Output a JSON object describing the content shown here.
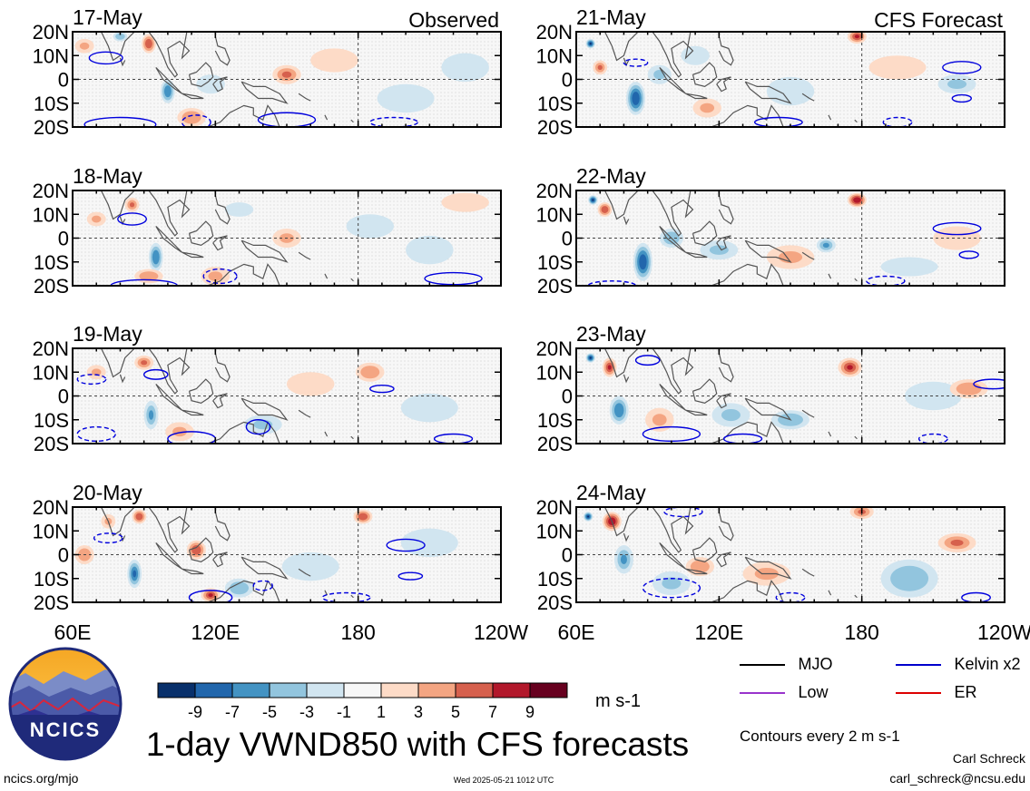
{
  "logo": {
    "text": "NCICS"
  },
  "title": "1-day VWND850 with CFS forecasts",
  "footer": {
    "left": "ncics.org/mjo",
    "center": "Wed 2025-05-21 1012 UTC",
    "author": "Carl Schreck",
    "email": "carl_schreck@ncsu.edu"
  },
  "colorbar": {
    "unit": "m s-1",
    "colors": [
      "#08306b",
      "#2166ac",
      "#4393c3",
      "#92c5de",
      "#d1e5f0",
      "#f7f7f7",
      "#fddbc7",
      "#f4a582",
      "#d6604d",
      "#b2182b",
      "#67001f"
    ],
    "tick_labels": [
      "-9",
      "-7",
      "-5",
      "-3",
      "-1",
      "1",
      "3",
      "5",
      "7",
      "9"
    ]
  },
  "legend": {
    "items": [
      {
        "label": "MJO",
        "color": "#000000"
      },
      {
        "label": "Kelvin x2",
        "color": "#0000cc"
      },
      {
        "label": "Low",
        "color": "#9933cc"
      },
      {
        "label": "ER",
        "color": "#dd0000"
      }
    ],
    "note": "Contours every 2 m s-1"
  },
  "chart_data": {
    "type": "heatmap",
    "variable": "VWND850",
    "units": "m s-1",
    "lon_ticks": [
      "60E",
      "120E",
      "180",
      "120W"
    ],
    "lat_ticks": [
      "20N",
      "10N",
      "0",
      "10S",
      "20S"
    ],
    "lon_range": [
      60,
      240
    ],
    "lat_range": [
      -20,
      20
    ],
    "levels": [
      -9,
      -7,
      -5,
      -3,
      -1,
      1,
      3,
      5,
      7,
      9
    ],
    "columns": [
      {
        "label": "Observed",
        "panels": [
          "17-May",
          "18-May",
          "19-May",
          "20-May"
        ]
      },
      {
        "label": "CFS Forecast",
        "panels": [
          "21-May",
          "22-May",
          "23-May",
          "24-May"
        ]
      }
    ],
    "anomaly_blobs": {
      "17-May": [
        [
          65,
          14,
          4,
          3,
          3
        ],
        [
          80,
          18,
          3,
          2,
          -4
        ],
        [
          92,
          15,
          3,
          4,
          6
        ],
        [
          100,
          -5,
          3,
          5,
          -6
        ],
        [
          118,
          -2,
          6,
          4,
          -2
        ],
        [
          150,
          2,
          6,
          4,
          5
        ],
        [
          170,
          8,
          10,
          5,
          2
        ],
        [
          200,
          -8,
          12,
          6,
          -1.5
        ],
        [
          225,
          5,
          10,
          6,
          -2
        ],
        [
          110,
          -16,
          6,
          4,
          4
        ]
      ],
      "18-May": [
        [
          70,
          8,
          4,
          3,
          3
        ],
        [
          85,
          14,
          3,
          3,
          5
        ],
        [
          95,
          -8,
          3,
          6,
          -6
        ],
        [
          92,
          -16,
          6,
          3,
          4
        ],
        [
          130,
          12,
          6,
          3,
          -2
        ],
        [
          150,
          0,
          6,
          4,
          3
        ],
        [
          185,
          5,
          10,
          5,
          -2
        ],
        [
          210,
          -5,
          10,
          6,
          -1.5
        ],
        [
          120,
          -16,
          6,
          4,
          3
        ],
        [
          225,
          15,
          10,
          4,
          2
        ]
      ],
      "19-May": [
        [
          70,
          10,
          4,
          3,
          3
        ],
        [
          90,
          14,
          4,
          3,
          5
        ],
        [
          93,
          -8,
          3,
          6,
          -5
        ],
        [
          105,
          -15,
          6,
          4,
          3
        ],
        [
          140,
          -12,
          8,
          4,
          -3
        ],
        [
          185,
          10,
          6,
          4,
          4
        ],
        [
          210,
          -5,
          12,
          6,
          -1.5
        ],
        [
          160,
          5,
          10,
          5,
          2
        ]
      ],
      "20-May": [
        [
          65,
          0,
          4,
          4,
          4
        ],
        [
          75,
          14,
          3,
          3,
          3
        ],
        [
          88,
          16,
          3,
          3,
          6
        ],
        [
          86,
          -8,
          3,
          6,
          -7
        ],
        [
          112,
          2,
          4,
          4,
          6
        ],
        [
          118,
          -17,
          4,
          3,
          7
        ],
        [
          130,
          -14,
          6,
          4,
          -4
        ],
        [
          182,
          16,
          4,
          3,
          6
        ],
        [
          160,
          -5,
          12,
          6,
          -1.5
        ],
        [
          210,
          5,
          12,
          6,
          -2
        ]
      ],
      "21-May": [
        [
          66,
          15,
          2,
          2,
          -9
        ],
        [
          70,
          5,
          3,
          3,
          5
        ],
        [
          85,
          -8,
          4,
          7,
          -8
        ],
        [
          95,
          2,
          5,
          4,
          -3
        ],
        [
          110,
          10,
          6,
          4,
          -2
        ],
        [
          115,
          -12,
          6,
          4,
          3
        ],
        [
          178,
          18,
          4,
          3,
          7
        ],
        [
          195,
          5,
          12,
          5,
          1.5
        ],
        [
          220,
          -2,
          8,
          4,
          -3
        ],
        [
          150,
          -5,
          10,
          6,
          -1.5
        ]
      ],
      "22-May": [
        [
          67,
          16,
          2,
          2,
          -9
        ],
        [
          72,
          12,
          3,
          3,
          6
        ],
        [
          88,
          -10,
          4,
          8,
          -8
        ],
        [
          100,
          0,
          5,
          4,
          -4
        ],
        [
          120,
          -5,
          8,
          4,
          -3
        ],
        [
          178,
          16,
          4,
          3,
          8
        ],
        [
          150,
          -8,
          10,
          5,
          3
        ],
        [
          165,
          -3,
          4,
          3,
          -5
        ],
        [
          220,
          0,
          10,
          5,
          2
        ],
        [
          200,
          -12,
          12,
          4,
          -1.5
        ]
      ],
      "23-May": [
        [
          66,
          16,
          2,
          2,
          -9
        ],
        [
          74,
          12,
          3,
          4,
          7
        ],
        [
          78,
          -6,
          4,
          6,
          -6
        ],
        [
          95,
          -10,
          6,
          5,
          3
        ],
        [
          125,
          -8,
          8,
          5,
          -3
        ],
        [
          150,
          -10,
          8,
          4,
          -4
        ],
        [
          175,
          12,
          5,
          4,
          7
        ],
        [
          210,
          0,
          12,
          6,
          -1.5
        ],
        [
          225,
          3,
          8,
          4,
          4
        ]
      ],
      "24-May": [
        [
          65,
          16,
          2,
          2,
          -9
        ],
        [
          75,
          14,
          4,
          4,
          8
        ],
        [
          80,
          -2,
          4,
          6,
          -5
        ],
        [
          100,
          -12,
          8,
          5,
          -3
        ],
        [
          112,
          -5,
          6,
          4,
          4
        ],
        [
          140,
          -8,
          10,
          5,
          3
        ],
        [
          200,
          -10,
          12,
          8,
          -4
        ],
        [
          220,
          5,
          8,
          4,
          5
        ],
        [
          180,
          18,
          5,
          3,
          5
        ]
      ]
    },
    "contours": {
      "17-May": [
        {
          "lon": 74,
          "lat": 9,
          "rx": 7,
          "ry": 2.5,
          "dash": false
        },
        {
          "lon": 80,
          "lat": -19,
          "rx": 15,
          "ry": 3,
          "dash": false
        },
        {
          "lon": 112,
          "lat": -18,
          "rx": 6,
          "ry": 3,
          "dash": true
        },
        {
          "lon": 150,
          "lat": -17,
          "rx": 12,
          "ry": 3,
          "dash": false
        },
        {
          "lon": 195,
          "lat": -18,
          "rx": 10,
          "ry": 2,
          "dash": true
        }
      ],
      "18-May": [
        {
          "lon": 85,
          "lat": 8,
          "rx": 6,
          "ry": 2.5,
          "dash": false
        },
        {
          "lon": 90,
          "lat": -20,
          "rx": 14,
          "ry": 2.5,
          "dash": false
        },
        {
          "lon": 122,
          "lat": -16,
          "rx": 7,
          "ry": 3,
          "dash": true
        },
        {
          "lon": 220,
          "lat": -17,
          "rx": 12,
          "ry": 2.5,
          "dash": false
        }
      ],
      "19-May": [
        {
          "lon": 68,
          "lat": 7,
          "rx": 6,
          "ry": 2,
          "dash": true
        },
        {
          "lon": 95,
          "lat": 9,
          "rx": 5,
          "ry": 2,
          "dash": false
        },
        {
          "lon": 190,
          "lat": 3,
          "rx": 5,
          "ry": 1.5,
          "dash": false
        },
        {
          "lon": 70,
          "lat": -16,
          "rx": 8,
          "ry": 3,
          "dash": true
        },
        {
          "lon": 110,
          "lat": -18,
          "rx": 10,
          "ry": 3,
          "dash": false
        },
        {
          "lon": 138,
          "lat": -13,
          "rx": 5,
          "ry": 3,
          "dash": false
        },
        {
          "lon": 220,
          "lat": -18,
          "rx": 8,
          "ry": 2,
          "dash": false
        }
      ],
      "20-May": [
        {
          "lon": 75,
          "lat": 7,
          "rx": 6,
          "ry": 2,
          "dash": true
        },
        {
          "lon": 200,
          "lat": 4,
          "rx": 8,
          "ry": 2.5,
          "dash": false
        },
        {
          "lon": 202,
          "lat": -9,
          "rx": 5,
          "ry": 1.5,
          "dash": false
        },
        {
          "lon": 118,
          "lat": -18,
          "rx": 9,
          "ry": 3,
          "dash": false
        },
        {
          "lon": 140,
          "lat": -13,
          "rx": 4,
          "ry": 2,
          "dash": true
        },
        {
          "lon": 175,
          "lat": -18,
          "rx": 10,
          "ry": 2,
          "dash": true
        }
      ],
      "21-May": [
        {
          "lon": 85,
          "lat": 7,
          "rx": 5,
          "ry": 1.5,
          "dash": true
        },
        {
          "lon": 222,
          "lat": 5,
          "rx": 8,
          "ry": 2.5,
          "dash": false
        },
        {
          "lon": 222,
          "lat": -8,
          "rx": 4,
          "ry": 1.5,
          "dash": false
        },
        {
          "lon": 145,
          "lat": -18,
          "rx": 10,
          "ry": 2,
          "dash": false
        },
        {
          "lon": 195,
          "lat": -18,
          "rx": 6,
          "ry": 2,
          "dash": true
        }
      ],
      "22-May": [
        {
          "lon": 220,
          "lat": 4,
          "rx": 10,
          "ry": 2.5,
          "dash": false
        },
        {
          "lon": 225,
          "lat": -7,
          "rx": 4,
          "ry": 1.5,
          "dash": false
        },
        {
          "lon": 75,
          "lat": -20,
          "rx": 10,
          "ry": 2,
          "dash": true
        },
        {
          "lon": 190,
          "lat": -18,
          "rx": 8,
          "ry": 2,
          "dash": true
        }
      ],
      "23-May": [
        {
          "lon": 90,
          "lat": 15,
          "rx": 5,
          "ry": 2,
          "dash": false
        },
        {
          "lon": 235,
          "lat": 5,
          "rx": 8,
          "ry": 2,
          "dash": false
        },
        {
          "lon": 100,
          "lat": -16,
          "rx": 12,
          "ry": 3,
          "dash": false
        },
        {
          "lon": 130,
          "lat": -18,
          "rx": 8,
          "ry": 2,
          "dash": false
        },
        {
          "lon": 210,
          "lat": -18,
          "rx": 6,
          "ry": 2,
          "dash": true
        }
      ],
      "24-May": [
        {
          "lon": 105,
          "lat": 18,
          "rx": 8,
          "ry": 2,
          "dash": true
        },
        {
          "lon": 100,
          "lat": -14,
          "rx": 12,
          "ry": 4,
          "dash": true
        },
        {
          "lon": 150,
          "lat": -18,
          "rx": 6,
          "ry": 2,
          "dash": true
        },
        {
          "lon": 228,
          "lat": -18,
          "rx": 6,
          "ry": 2,
          "dash": false
        }
      ]
    }
  }
}
